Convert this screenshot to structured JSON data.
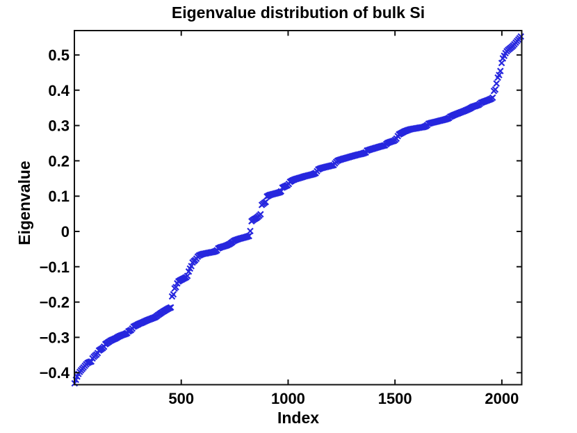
{
  "chart_data": {
    "type": "scatter",
    "title": "Eigenvalue distribution of bulk Si",
    "xlabel": "Index",
    "ylabel": "Eigenvalue",
    "marker": "x",
    "marker_color": "#2626DE",
    "axis_color": "#111111",
    "background": "#FFFFFF",
    "grid": false,
    "legend": null,
    "n_points": 2092,
    "xlim": [
      0,
      2093
    ],
    "ylim": [
      -0.434,
      0.569
    ],
    "xticks": [
      {
        "value": 500,
        "label": "500"
      },
      {
        "value": 1000,
        "label": "1000"
      },
      {
        "value": 1500,
        "label": "1500"
      },
      {
        "value": 2000,
        "label": "2000"
      }
    ],
    "yticks": [
      {
        "value": -0.4,
        "label": "−0.4"
      },
      {
        "value": -0.3,
        "label": "−0.3"
      },
      {
        "value": -0.2,
        "label": "−0.2"
      },
      {
        "value": -0.1,
        "label": "−0.1"
      },
      {
        "value": 0,
        "label": "0"
      },
      {
        "value": 0.1,
        "label": "0.1"
      },
      {
        "value": 0.2,
        "label": "0.2"
      },
      {
        "value": 0.3,
        "label": "0.3"
      },
      {
        "value": 0.4,
        "label": "0.4"
      },
      {
        "value": 0.5,
        "label": "0.5"
      }
    ],
    "series": [
      {
        "name": "eigenvalues",
        "note": "piecewise-linear breakpoints [index, eigenvalue] tracing the sorted-eigenvalue staircase; full curve has ~2092 points",
        "breakpoints": [
          [
            2,
            -0.43
          ],
          [
            6,
            -0.422
          ],
          [
            10,
            -0.415
          ],
          [
            16,
            -0.407
          ],
          [
            22,
            -0.4
          ],
          [
            30,
            -0.394
          ],
          [
            40,
            -0.387
          ],
          [
            50,
            -0.38
          ],
          [
            58,
            -0.374
          ],
          [
            66,
            -0.371
          ],
          [
            80,
            -0.368
          ],
          [
            86,
            -0.358
          ],
          [
            96,
            -0.352
          ],
          [
            108,
            -0.346
          ],
          [
            113,
            -0.338
          ],
          [
            126,
            -0.333
          ],
          [
            138,
            -0.328
          ],
          [
            143,
            -0.32
          ],
          [
            158,
            -0.314
          ],
          [
            170,
            -0.309
          ],
          [
            181,
            -0.306
          ],
          [
            196,
            -0.302
          ],
          [
            206,
            -0.298
          ],
          [
            225,
            -0.293
          ],
          [
            245,
            -0.289
          ],
          [
            253,
            -0.283
          ],
          [
            268,
            -0.278
          ],
          [
            276,
            -0.27
          ],
          [
            292,
            -0.265
          ],
          [
            305,
            -0.261
          ],
          [
            318,
            -0.258
          ],
          [
            331,
            -0.254
          ],
          [
            343,
            -0.251
          ],
          [
            360,
            -0.247
          ],
          [
            378,
            -0.243
          ],
          [
            391,
            -0.237
          ],
          [
            405,
            -0.231
          ],
          [
            418,
            -0.226
          ],
          [
            429,
            -0.222
          ],
          [
            440,
            -0.218
          ],
          [
            451,
            -0.215
          ],
          [
            456,
            -0.185
          ],
          [
            463,
            -0.178
          ],
          [
            468,
            -0.162
          ],
          [
            476,
            -0.157
          ],
          [
            483,
            -0.143
          ],
          [
            496,
            -0.138
          ],
          [
            512,
            -0.133
          ],
          [
            528,
            -0.128
          ],
          [
            534,
            -0.115
          ],
          [
            541,
            -0.105
          ],
          [
            548,
            -0.097
          ],
          [
            553,
            -0.088
          ],
          [
            561,
            -0.083
          ],
          [
            568,
            -0.08
          ],
          [
            576,
            -0.072
          ],
          [
            583,
            -0.068
          ],
          [
            598,
            -0.064
          ],
          [
            615,
            -0.062
          ],
          [
            632,
            -0.06
          ],
          [
            650,
            -0.058
          ],
          [
            665,
            -0.055
          ],
          [
            673,
            -0.048
          ],
          [
            683,
            -0.045
          ],
          [
            700,
            -0.042
          ],
          [
            715,
            -0.039
          ],
          [
            728,
            -0.035
          ],
          [
            739,
            -0.03
          ],
          [
            748,
            -0.026
          ],
          [
            761,
            -0.023
          ],
          [
            776,
            -0.02
          ],
          [
            795,
            -0.017
          ],
          [
            812,
            -0.014
          ],
          [
            821,
            -0.012
          ],
          [
            827,
            0.028
          ],
          [
            837,
            0.033
          ],
          [
            851,
            0.038
          ],
          [
            862,
            0.043
          ],
          [
            873,
            0.05
          ],
          [
            877,
            0.075
          ],
          [
            887,
            0.08
          ],
          [
            896,
            0.084
          ],
          [
            901,
            0.099
          ],
          [
            913,
            0.103
          ],
          [
            930,
            0.106
          ],
          [
            950,
            0.109
          ],
          [
            966,
            0.112
          ],
          [
            973,
            0.124
          ],
          [
            986,
            0.128
          ],
          [
            1001,
            0.132
          ],
          [
            1007,
            0.14
          ],
          [
            1021,
            0.145
          ],
          [
            1038,
            0.149
          ],
          [
            1056,
            0.152
          ],
          [
            1076,
            0.156
          ],
          [
            1096,
            0.159
          ],
          [
            1116,
            0.162
          ],
          [
            1131,
            0.166
          ],
          [
            1139,
            0.175
          ],
          [
            1153,
            0.179
          ],
          [
            1171,
            0.182
          ],
          [
            1192,
            0.185
          ],
          [
            1213,
            0.188
          ],
          [
            1223,
            0.196
          ],
          [
            1233,
            0.201
          ],
          [
            1253,
            0.205
          ],
          [
            1276,
            0.209
          ],
          [
            1299,
            0.213
          ],
          [
            1323,
            0.217
          ],
          [
            1346,
            0.22
          ],
          [
            1363,
            0.224
          ],
          [
            1369,
            0.229
          ],
          [
            1389,
            0.233
          ],
          [
            1411,
            0.237
          ],
          [
            1433,
            0.241
          ],
          [
            1453,
            0.244
          ],
          [
            1463,
            0.25
          ],
          [
            1479,
            0.254
          ],
          [
            1496,
            0.257
          ],
          [
            1506,
            0.262
          ],
          [
            1513,
            0.27
          ],
          [
            1519,
            0.275
          ],
          [
            1531,
            0.279
          ],
          [
            1543,
            0.283
          ],
          [
            1559,
            0.287
          ],
          [
            1576,
            0.29
          ],
          [
            1596,
            0.292
          ],
          [
            1616,
            0.294
          ],
          [
            1636,
            0.296
          ],
          [
            1649,
            0.3
          ],
          [
            1656,
            0.305
          ],
          [
            1673,
            0.308
          ],
          [
            1693,
            0.311
          ],
          [
            1713,
            0.314
          ],
          [
            1733,
            0.317
          ],
          [
            1749,
            0.32
          ],
          [
            1759,
            0.325
          ],
          [
            1773,
            0.329
          ],
          [
            1789,
            0.333
          ],
          [
            1806,
            0.337
          ],
          [
            1823,
            0.341
          ],
          [
            1839,
            0.345
          ],
          [
            1853,
            0.349
          ],
          [
            1863,
            0.353
          ],
          [
            1879,
            0.356
          ],
          [
            1893,
            0.359
          ],
          [
            1901,
            0.364
          ],
          [
            1913,
            0.367
          ],
          [
            1926,
            0.37
          ],
          [
            1939,
            0.373
          ],
          [
            1951,
            0.376
          ],
          [
            1959,
            0.38
          ],
          [
            1963,
            0.398
          ],
          [
            1969,
            0.402
          ],
          [
            1973,
            0.406
          ],
          [
            1977,
            0.432
          ],
          [
            1983,
            0.438
          ],
          [
            1987,
            0.443
          ],
          [
            1991,
            0.447
          ],
          [
            1994,
            0.458
          ],
          [
            1997,
            0.464
          ],
          [
            2000,
            0.484
          ],
          [
            2004,
            0.489
          ],
          [
            2009,
            0.495
          ],
          [
            2013,
            0.5
          ],
          [
            2017,
            0.505
          ],
          [
            2021,
            0.509
          ],
          [
            2027,
            0.513
          ],
          [
            2035,
            0.517
          ],
          [
            2043,
            0.521
          ],
          [
            2051,
            0.525
          ],
          [
            2057,
            0.529
          ],
          [
            2063,
            0.533
          ],
          [
            2069,
            0.538
          ],
          [
            2075,
            0.542
          ],
          [
            2081,
            0.546
          ],
          [
            2086,
            0.55
          ],
          [
            2090,
            0.553
          ],
          [
            2092,
            0.557
          ]
        ]
      }
    ]
  }
}
